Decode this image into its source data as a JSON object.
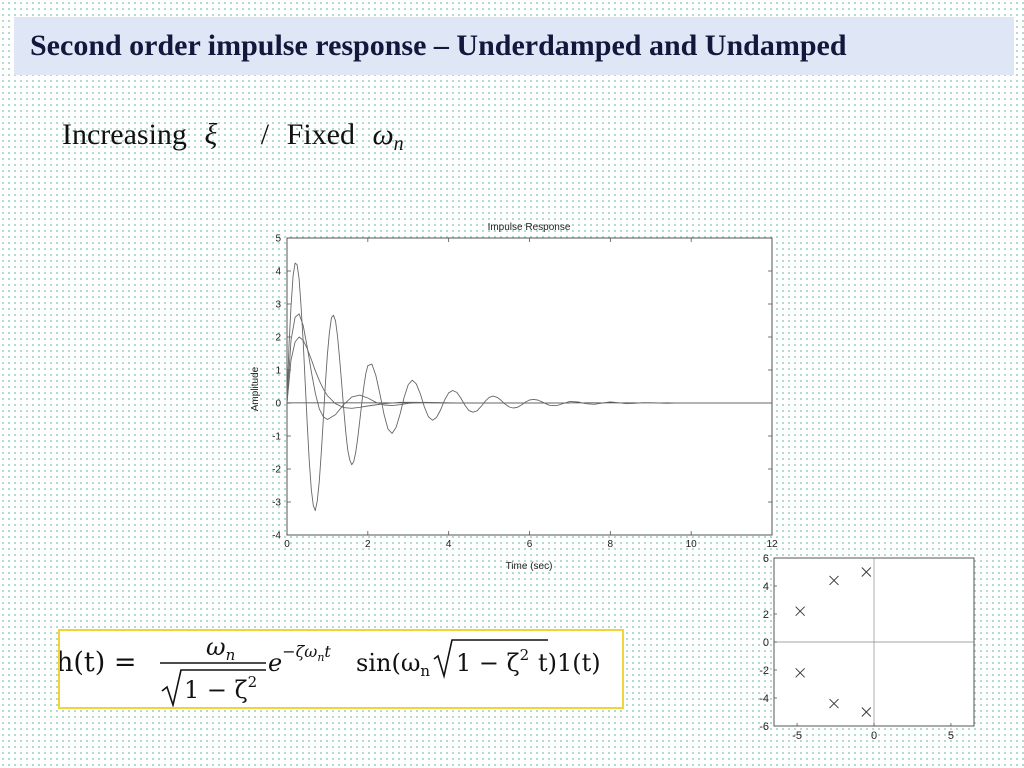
{
  "slide": {
    "title": "Second order impulse response – Underdamped and Undamped",
    "subtitle": {
      "text1": "Increasing",
      "symbol1": "ξ",
      "separator": "/",
      "text2": "Fixed",
      "symbol2": "ω",
      "symbol2_sub": "n"
    },
    "formula": {
      "lhs": "h(t) =",
      "numerator": "ω",
      "numerator_sub": "n",
      "denominator": "1 − ζ",
      "denominator_sup": "2",
      "exp_base": "e",
      "exponent": "−ζω",
      "exponent_sub": "n",
      "exponent_t": "t",
      "sin_part": "sin(ω",
      "sin_sub": "n",
      "sqrt_arg": "1 − ζ",
      "sqrt_sup": "2",
      "tail": "t)1(t)"
    }
  },
  "colors": {
    "title_bg": "#dfe7f7",
    "title_text": "#14173c",
    "formula_border": "#f1d437",
    "curve": "#666666"
  },
  "chart_data": [
    {
      "type": "line",
      "title": "Impulse Response",
      "xlabel": "Time (sec)",
      "ylabel": "Amplitude",
      "xlim": [
        0,
        12
      ],
      "ylim": [
        -4,
        5
      ],
      "xticks": [
        0,
        2,
        4,
        6,
        8,
        10,
        12
      ],
      "yticks": [
        -4,
        -3,
        -2,
        -1,
        0,
        1,
        2,
        3,
        4,
        5
      ],
      "grid": false,
      "series": [
        {
          "x": [
            0,
            0.1,
            0.2,
            0.3,
            0.4,
            0.5,
            0.6,
            0.7,
            0.8,
            0.9,
            1.0,
            1.2,
            1.4,
            1.6,
            1.8,
            2.0,
            2.4,
            2.8,
            3.2,
            3.6,
            4.0,
            4.5,
            5.0,
            6.0
          ],
          "y": [
            0,
            1.3,
            1.85,
            2.0,
            1.9,
            1.65,
            1.32,
            0.98,
            0.68,
            0.42,
            0.22,
            -0.02,
            -0.14,
            -0.16,
            -0.13,
            -0.09,
            -0.02,
            0.02,
            0.02,
            0.01,
            0.0,
            0.0,
            0.0,
            0.0
          ]
        },
        {
          "x": [
            0,
            0.1,
            0.2,
            0.3,
            0.4,
            0.5,
            0.6,
            0.7,
            0.8,
            0.9,
            1.0,
            1.2,
            1.4,
            1.6,
            1.8,
            2.0,
            2.2,
            2.4,
            2.6,
            2.8,
            3.0,
            3.4,
            3.8,
            4.2,
            4.6,
            5.0,
            5.5,
            6.0,
            6.5,
            7.0
          ],
          "y": [
            0,
            1.9,
            2.6,
            2.7,
            2.35,
            1.7,
            0.95,
            0.3,
            -0.18,
            -0.42,
            -0.5,
            -0.35,
            -0.05,
            0.18,
            0.24,
            0.15,
            0.02,
            -0.06,
            -0.08,
            -0.05,
            -0.01,
            0.02,
            0.01,
            0.0,
            0.0,
            0.0,
            0.0,
            0.0,
            0.0,
            0.0
          ]
        },
        {
          "x": [
            0,
            0.05,
            0.1,
            0.15,
            0.2,
            0.25,
            0.3,
            0.35,
            0.4,
            0.45,
            0.5,
            0.55,
            0.6,
            0.65,
            0.7,
            0.75,
            0.8,
            0.85,
            0.9,
            0.95,
            1.0,
            1.05,
            1.1,
            1.15,
            1.2,
            1.25,
            1.3,
            1.35,
            1.4,
            1.45,
            1.5,
            1.55,
            1.6,
            1.65,
            1.7,
            1.75,
            1.8,
            1.85,
            1.9,
            1.95,
            2.0,
            2.1,
            2.2,
            2.3,
            2.4,
            2.5,
            2.6,
            2.7,
            2.8,
            2.9,
            3.0,
            3.1,
            3.2,
            3.3,
            3.4,
            3.5,
            3.6,
            3.7,
            3.8,
            3.9,
            4.0,
            4.1,
            4.2,
            4.3,
            4.4,
            4.5,
            4.6,
            4.7,
            4.8,
            4.9,
            5.0,
            5.1,
            5.2,
            5.3,
            5.4,
            5.5,
            5.6,
            5.7,
            5.8,
            5.9,
            6.0,
            6.1,
            6.2,
            6.3,
            6.4,
            6.5,
            6.6,
            6.7,
            6.8,
            6.9,
            7.0,
            7.2,
            7.4,
            7.6,
            7.8,
            8.0,
            8.2,
            8.4,
            8.6,
            8.8,
            9.0,
            9.2,
            9.4,
            9.6,
            9.8,
            10.0,
            10.2,
            10.4,
            10.6,
            10.8,
            11.0,
            11.2,
            11.4,
            11.6,
            11.8,
            12.0
          ],
          "y": [
            0,
            1.74,
            2.92,
            3.86,
            4.24,
            4.19,
            3.76,
            2.91,
            1.85,
            0.61,
            -0.61,
            -1.73,
            -2.62,
            -3.11,
            -3.26,
            -2.96,
            -2.37,
            -1.45,
            -0.45,
            0.59,
            1.47,
            2.14,
            2.59,
            2.66,
            2.49,
            2.03,
            1.38,
            0.62,
            -0.14,
            -0.83,
            -1.39,
            -1.71,
            -1.87,
            -1.78,
            -1.5,
            -1.07,
            -0.53,
            0.0,
            0.49,
            0.89,
            1.13,
            1.18,
            0.83,
            0.26,
            -0.34,
            -0.79,
            -0.92,
            -0.74,
            -0.32,
            0.18,
            0.56,
            0.69,
            0.58,
            0.27,
            -0.12,
            -0.42,
            -0.52,
            -0.44,
            -0.21,
            0.09,
            0.31,
            0.38,
            0.32,
            0.15,
            -0.06,
            -0.23,
            -0.28,
            -0.24,
            -0.11,
            0.05,
            0.17,
            0.21,
            0.17,
            0.08,
            -0.04,
            -0.12,
            -0.15,
            -0.13,
            -0.06,
            0.03,
            0.09,
            0.11,
            0.09,
            0.04,
            -0.02,
            -0.07,
            -0.08,
            -0.07,
            -0.03,
            0.01,
            0.05,
            0.03,
            -0.02,
            -0.04,
            0.0,
            0.03,
            0.01,
            -0.02,
            -0.01,
            0.01,
            0.01,
            0.0,
            -0.01,
            0.0,
            0.0,
            0.0,
            0.0,
            0.0,
            0.0,
            0.0,
            0.0,
            0.0,
            0.0,
            0.0,
            0.0,
            0.0
          ]
        }
      ]
    },
    {
      "type": "scatter",
      "xlim": [
        -6.5,
        6.5
      ],
      "ylim": [
        -6,
        6
      ],
      "xticks": [
        -5,
        0,
        5
      ],
      "yticks": [
        -6,
        -4,
        -2,
        0,
        2,
        4,
        6
      ],
      "grid": false,
      "marker": "x",
      "series": [
        {
          "x": [
            -0.5,
            -0.5,
            -2.6,
            -2.6,
            -4.8,
            -4.8
          ],
          "y": [
            5.0,
            -5.0,
            4.4,
            -4.4,
            2.2,
            -2.2
          ]
        }
      ]
    }
  ]
}
